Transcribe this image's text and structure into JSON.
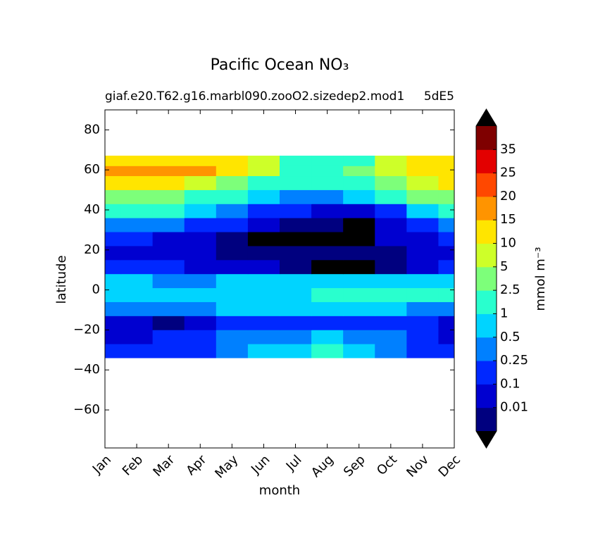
{
  "chart_data": {
    "type": "contour",
    "title": "Pacific Ocean NO₃",
    "title_left": "giaf.e20.T62.g16.marbl090.zooO2.sizedep2.mod1",
    "title_right": "5dE5",
    "xlabel": "month",
    "ylabel": "latitude",
    "colorbar_label": "mmol m⁻³",
    "categories": [
      "Jan",
      "Feb",
      "Mar",
      "Apr",
      "May",
      "Jun",
      "Jul",
      "Aug",
      "Sep",
      "Oct",
      "Nov",
      "Dec"
    ],
    "lat_edges": [
      -34,
      -27,
      -20,
      -13,
      -6,
      1,
      8,
      15,
      22,
      29,
      36,
      43,
      50,
      57,
      62,
      67
    ],
    "z": [
      [
        0.2,
        0.2,
        0.2,
        0.2,
        0.3,
        0.6,
        0.8,
        1.2,
        0.9,
        0.4,
        0.2,
        0.2
      ],
      [
        0.05,
        0.05,
        0.15,
        0.2,
        0.3,
        0.4,
        0.4,
        0.6,
        0.4,
        0.3,
        0.15,
        0.05
      ],
      [
        0.05,
        0.05,
        0.008,
        0.05,
        0.15,
        0.2,
        0.2,
        0.2,
        0.2,
        0.2,
        0.15,
        0.05
      ],
      [
        0.3,
        0.3,
        0.3,
        0.4,
        0.6,
        0.6,
        0.6,
        0.6,
        0.6,
        0.5,
        0.4,
        0.3
      ],
      [
        0.7,
        0.7,
        0.7,
        0.8,
        0.8,
        0.8,
        0.9,
        1.2,
        1.5,
        1.5,
        1.5,
        1.2
      ],
      [
        0.6,
        0.6,
        0.4,
        0.4,
        0.5,
        0.6,
        0.6,
        0.6,
        0.7,
        0.6,
        0.6,
        0.7
      ],
      [
        0.15,
        0.12,
        0.12,
        0.08,
        0.06,
        0.02,
        0.008,
        0,
        0,
        0.008,
        0.05,
        0.1
      ],
      [
        0.05,
        0.05,
        0.05,
        0.05,
        0.008,
        0.008,
        0.008,
        0.008,
        0.008,
        0.008,
        0.05,
        0.05
      ],
      [
        0.15,
        0.12,
        0.08,
        0.05,
        0.008,
        0,
        0,
        0,
        0,
        0.05,
        0.08,
        0.12
      ],
      [
        0.3,
        0.3,
        0.3,
        0.2,
        0.15,
        0.05,
        0.008,
        0.008,
        0,
        0.05,
        0.2,
        0.3
      ],
      [
        1.2,
        1.2,
        1,
        0.7,
        0.4,
        0.2,
        0.1,
        0.05,
        0.05,
        0.2,
        0.6,
        1.2
      ],
      [
        4,
        3.5,
        3,
        2,
        1.2,
        0.6,
        0.4,
        0.4,
        0.5,
        1.2,
        3,
        4
      ],
      [
        14,
        12,
        11,
        8,
        4,
        2,
        1.5,
        1.5,
        2,
        4,
        8,
        12
      ],
      [
        17,
        17,
        17,
        16,
        12,
        5,
        2,
        1.5,
        3,
        6,
        12,
        13
      ],
      [
        12,
        12,
        11,
        11,
        11,
        6,
        2,
        1,
        2,
        6,
        12,
        13
      ]
    ],
    "ylim": [
      -79,
      90
    ],
    "yticks": [
      {
        "value": -60,
        "label": "−60"
      },
      {
        "value": -40,
        "label": "−40"
      },
      {
        "value": -20,
        "label": "−20"
      },
      0,
      20,
      40,
      60,
      80
    ],
    "levels": [
      0.01,
      0.1,
      0.25,
      0.5,
      1,
      2.5,
      5,
      10,
      15,
      20,
      25,
      35
    ],
    "colors": [
      "#00007f",
      "#0000d0",
      "#0028ff",
      "#0080ff",
      "#00d4ff",
      "#29ffce",
      "#7dff7a",
      "#ceff29",
      "#ffe500",
      "#ff9400",
      "#ff4800",
      "#e30000",
      "#7f0000"
    ],
    "under_color": "#000000",
    "over_color": "#000000"
  }
}
